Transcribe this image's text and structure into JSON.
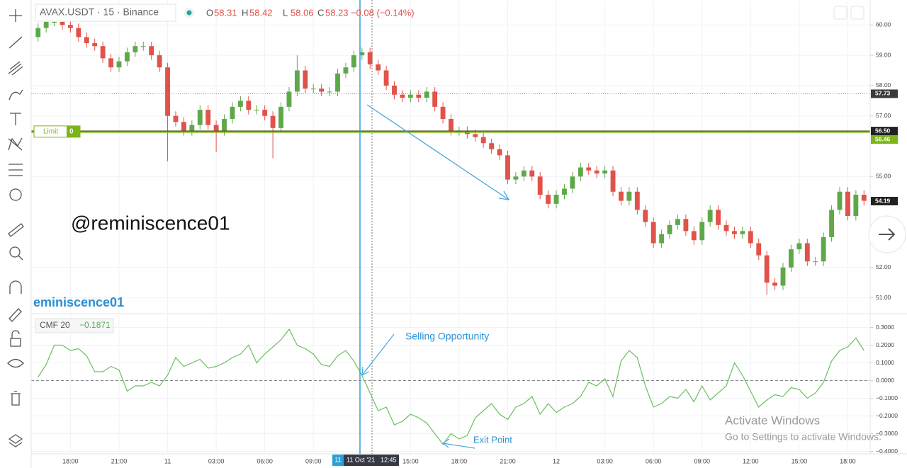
{
  "ui": {
    "symbol": "AVAX.USDT · 15 · Binance",
    "ohlc": [
      [
        "O",
        "58.31"
      ],
      [
        "H",
        "58.42"
      ],
      [
        "L",
        "58.06"
      ],
      [
        "C",
        "58.23"
      ]
    ],
    "change": "−0.08 (−0.14%)",
    "watermark": "@reminiscence01",
    "watermark2": "eminiscence01",
    "crosshair_day": "11",
    "crosshair_date": "11 Oct '21",
    "crosshair_time": "12:45",
    "activate_title": "Activate Windows",
    "activate_text": "Go to Settings to activate Windows."
  },
  "chart_data": [
    {
      "type": "candlestick",
      "categories": [
        null,
        null,
        null,
        null,
        "18:00",
        null,
        null,
        null,
        null,
        null,
        "21:00",
        null,
        null,
        null,
        null,
        null,
        "11",
        null,
        null,
        null,
        null,
        null,
        "03:00",
        null,
        null,
        null,
        null,
        null,
        "06:00",
        null,
        null,
        null,
        null,
        null,
        "09:00",
        null,
        null,
        null,
        null,
        null,
        null,
        null,
        null,
        null,
        null,
        null,
        "15:00",
        null,
        null,
        null,
        null,
        null,
        "18:00",
        null,
        null,
        null,
        null,
        null,
        "21:00",
        null,
        null,
        null,
        null,
        null,
        "12",
        null,
        null,
        null,
        null,
        null,
        "03:00",
        null,
        null,
        null,
        null,
        null,
        "06:00",
        null,
        null,
        null,
        null,
        null,
        "09:00",
        null,
        null,
        null,
        null,
        null,
        "12:00",
        null,
        null,
        null,
        null,
        null,
        "15:00",
        null,
        null,
        null,
        null,
        null,
        "18:00",
        null,
        null
      ],
      "open": [
        59.6,
        59.9,
        60.1,
        60.1,
        60.0,
        59.9,
        59.6,
        59.4,
        59.3,
        58.9,
        58.6,
        58.8,
        59.1,
        59.3,
        59.3,
        59.0,
        58.6,
        57.0,
        56.8,
        56.5,
        56.7,
        57.2,
        56.7,
        56.5,
        56.9,
        57.3,
        57.5,
        57.2,
        57.2,
        57.0,
        56.6,
        57.3,
        57.8,
        58.5,
        57.9,
        57.9,
        57.8,
        57.8,
        58.4,
        58.6,
        59.0,
        59.1,
        58.7,
        58.5,
        58.0,
        57.7,
        57.6,
        57.7,
        57.6,
        57.8,
        57.3,
        56.9,
        56.5,
        56.5,
        56.4,
        56.3,
        56.1,
        55.9,
        55.7,
        54.9,
        55.0,
        55.2,
        55.0,
        54.4,
        54.1,
        54.4,
        54.6,
        55.0,
        55.3,
        55.2,
        55.1,
        55.2,
        54.5,
        54.2,
        54.5,
        53.9,
        53.5,
        52.8,
        53.1,
        53.4,
        53.6,
        53.2,
        52.9,
        53.5,
        53.9,
        53.4,
        53.2,
        53.1,
        53.2,
        52.8,
        52.4,
        51.5,
        51.4,
        52.0,
        52.6,
        52.8,
        52.2,
        52.2,
        53.0,
        53.9,
        54.5,
        53.7,
        54.4
      ],
      "high": [
        60.05,
        60.25,
        60.25,
        60.25,
        60.15,
        60.05,
        59.75,
        59.55,
        59.45,
        59.05,
        58.95,
        59.25,
        59.45,
        59.45,
        59.45,
        59.15,
        58.75,
        57.15,
        56.95,
        56.85,
        57.35,
        57.35,
        56.85,
        57.05,
        57.45,
        57.65,
        57.65,
        57.35,
        57.35,
        57.15,
        57.45,
        57.95,
        59.0,
        58.65,
        58.05,
        58.05,
        57.95,
        58.55,
        58.75,
        59.15,
        59.25,
        59.25,
        58.85,
        58.65,
        58.15,
        57.85,
        57.85,
        57.85,
        57.95,
        57.95,
        57.45,
        57.05,
        56.65,
        56.65,
        56.55,
        56.45,
        56.25,
        56.05,
        55.85,
        55.15,
        55.35,
        55.35,
        55.15,
        54.55,
        54.55,
        54.75,
        55.15,
        55.45,
        55.45,
        55.35,
        55.35,
        55.35,
        54.65,
        54.65,
        54.65,
        54.05,
        53.65,
        53.25,
        53.55,
        53.75,
        53.75,
        53.35,
        53.65,
        54.05,
        54.05,
        53.55,
        53.35,
        53.35,
        53.35,
        52.95,
        52.55,
        51.65,
        52.15,
        52.75,
        52.95,
        52.95,
        52.35,
        53.15,
        54.05,
        54.65,
        54.65,
        54.55,
        54.55
      ],
      "low": [
        59.45,
        59.75,
        59.95,
        59.85,
        59.75,
        59.45,
        59.25,
        59.15,
        58.75,
        58.45,
        58.45,
        58.65,
        58.95,
        59.15,
        58.85,
        58.45,
        55.5,
        56.65,
        56.35,
        56.35,
        56.55,
        56.55,
        55.8,
        56.35,
        56.75,
        57.15,
        57.05,
        57.05,
        56.85,
        55.6,
        56.45,
        57.15,
        57.65,
        57.75,
        57.75,
        57.65,
        57.65,
        57.65,
        58.25,
        58.45,
        58.85,
        58.55,
        58.35,
        57.85,
        57.55,
        57.45,
        57.45,
        57.45,
        57.45,
        57.15,
        56.75,
        56.35,
        56.35,
        56.25,
        56.15,
        55.95,
        55.75,
        55.55,
        54.75,
        54.75,
        54.85,
        54.85,
        54.25,
        53.95,
        53.95,
        54.25,
        54.45,
        54.85,
        55.05,
        54.95,
        54.95,
        54.35,
        54.05,
        54.05,
        53.75,
        53.35,
        52.65,
        52.65,
        52.95,
        53.25,
        53.05,
        52.75,
        52.75,
        53.35,
        53.25,
        53.05,
        52.95,
        52.95,
        52.65,
        52.25,
        51.1,
        51.25,
        51.25,
        51.85,
        52.45,
        52.05,
        52.05,
        52.05,
        52.85,
        53.75,
        53.55,
        53.55,
        54.05
      ],
      "close": [
        59.9,
        60.1,
        60.1,
        60.0,
        59.9,
        59.6,
        59.4,
        59.3,
        58.9,
        58.6,
        58.8,
        59.1,
        59.3,
        59.3,
        59.0,
        58.6,
        57.0,
        56.8,
        56.5,
        56.7,
        57.2,
        56.7,
        56.5,
        56.9,
        57.3,
        57.5,
        57.2,
        57.2,
        57.0,
        56.6,
        57.3,
        57.8,
        58.5,
        57.9,
        57.9,
        57.8,
        57.8,
        58.4,
        58.6,
        59.0,
        59.1,
        58.7,
        58.5,
        58.0,
        57.7,
        57.6,
        57.7,
        57.6,
        57.8,
        57.3,
        56.9,
        56.5,
        56.5,
        56.4,
        56.3,
        56.1,
        55.9,
        55.7,
        54.9,
        55.0,
        55.2,
        55.0,
        54.4,
        54.1,
        54.4,
        54.6,
        55.0,
        55.3,
        55.2,
        55.1,
        55.2,
        54.5,
        54.2,
        54.5,
        53.9,
        53.5,
        52.8,
        53.1,
        53.4,
        53.6,
        53.2,
        52.9,
        53.5,
        53.9,
        53.4,
        53.2,
        53.1,
        53.2,
        52.8,
        52.4,
        51.5,
        51.4,
        52.0,
        52.6,
        52.8,
        52.2,
        52.2,
        53.0,
        53.9,
        54.5,
        53.7,
        54.4,
        54.2
      ],
      "up_color": "#5fa84a",
      "down_color": "#e0524a",
      "ylim": [
        50.5,
        60.8
      ],
      "yticks": [
        {
          "value": 51,
          "label": "51.00"
        },
        {
          "value": 52,
          "label": "52.00"
        },
        {
          "value": 55,
          "label": "55.00"
        },
        {
          "value": 57,
          "label": "57.00"
        },
        {
          "value": 58,
          "label": "58.00"
        },
        {
          "value": 59,
          "label": "59.00"
        },
        {
          "value": 60,
          "label": "60.00"
        }
      ],
      "grid": true,
      "price_lines": [
        {
          "value": 57.73,
          "label": "57.73",
          "color": "#888888",
          "label_color": "#3a3a3a",
          "style": "dotted"
        },
        {
          "value": 56.5,
          "label": "56.50",
          "color": "#5a5a20",
          "label_color": "#222222",
          "style": "solid"
        },
        {
          "value": 56.46,
          "label": "56.46",
          "color": "#7cb518",
          "label_color": "#7cb518",
          "style": "solid"
        }
      ],
      "last_price": {
        "value": 54.19,
        "label": "54.19",
        "color": "#222222"
      },
      "order": {
        "label": "Limit",
        "qty": 0,
        "color": "#7cb518"
      }
    },
    {
      "type": "line",
      "title": "CMF 20",
      "legend_value": {
        "value": -0.1871,
        "label": "−0.1871"
      },
      "color": "#6abf5e",
      "values": [
        0.02,
        0.09,
        0.2,
        0.2,
        0.17,
        0.18,
        0.14,
        0.05,
        0.05,
        0.08,
        0.06,
        -0.06,
        -0.03,
        -0.03,
        -0.01,
        -0.03,
        0.03,
        0.13,
        0.08,
        0.1,
        0.12,
        0.07,
        0.08,
        0.1,
        0.13,
        0.15,
        0.2,
        0.1,
        0.15,
        0.19,
        0.23,
        0.29,
        0.2,
        0.18,
        0.15,
        0.09,
        0.08,
        0.14,
        0.17,
        0.11,
        0.03,
        -0.07,
        -0.17,
        -0.15,
        -0.25,
        -0.23,
        -0.19,
        -0.21,
        -0.24,
        -0.3,
        -0.36,
        -0.3,
        -0.33,
        -0.31,
        -0.21,
        -0.17,
        -0.13,
        -0.19,
        -0.22,
        -0.15,
        -0.13,
        -0.09,
        -0.19,
        -0.13,
        -0.18,
        -0.15,
        -0.13,
        -0.09,
        -0.01,
        -0.03,
        0.01,
        -0.09,
        0.11,
        0.17,
        0.13,
        -0.03,
        -0.15,
        -0.13,
        -0.09,
        -0.1,
        -0.05,
        -0.12,
        -0.03,
        -0.11,
        -0.07,
        -0.03,
        0.1,
        0.03,
        -0.06,
        -0.15,
        -0.11,
        -0.08,
        -0.09,
        -0.04,
        -0.05,
        -0.1,
        -0.07,
        -0.01,
        0.11,
        0.17,
        0.19,
        0.24,
        0.17
      ],
      "ylim": [
        -0.41,
        0.37
      ],
      "yticks": [
        {
          "value": -0.4,
          "label": "−0.4000"
        },
        {
          "value": -0.3,
          "label": "−0.3000"
        },
        {
          "value": -0.2,
          "label": "−0.2000"
        },
        {
          "value": -0.1,
          "label": "−0.1000"
        },
        {
          "value": 0,
          "label": "0.0000"
        },
        {
          "value": 0.1,
          "label": "0.1000"
        },
        {
          "value": 0.2,
          "label": "0.2000"
        },
        {
          "value": 0.3,
          "label": "0.3000"
        }
      ],
      "baseline_dashed": true,
      "annotations": [
        "Selling Opportunity",
        "Exit Point"
      ]
    }
  ]
}
